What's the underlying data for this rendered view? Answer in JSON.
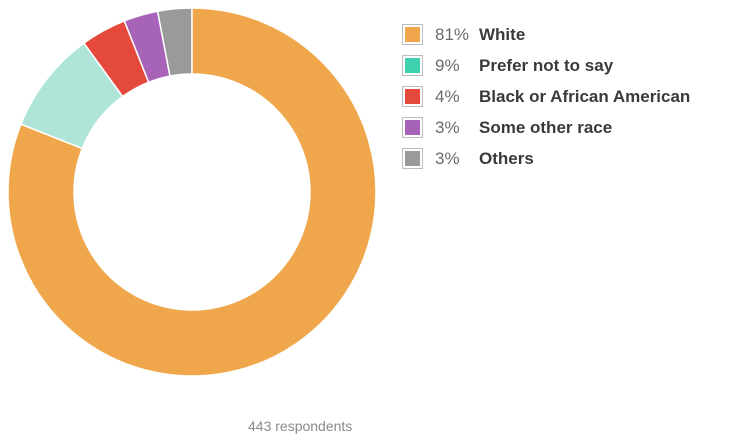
{
  "chart_data": {
    "type": "pie",
    "donut": true,
    "categories": [
      "White",
      "Prefer not to say",
      "Black or African American",
      "Some other race",
      "Others"
    ],
    "values": [
      81,
      9,
      4,
      3,
      3
    ],
    "value_labels": [
      "81%",
      "9%",
      "4%",
      "3%",
      "3%"
    ],
    "colors": [
      "#f0a64b",
      "#aee5d8",
      "#e4493b",
      "#a663b8",
      "#9a9a9a"
    ],
    "legend_colors": [
      "#f0a64b",
      "#3fd2b1",
      "#e4493b",
      "#a663b8",
      "#9a9a9a"
    ],
    "legend_position": "right",
    "footer": "443 respondents"
  }
}
